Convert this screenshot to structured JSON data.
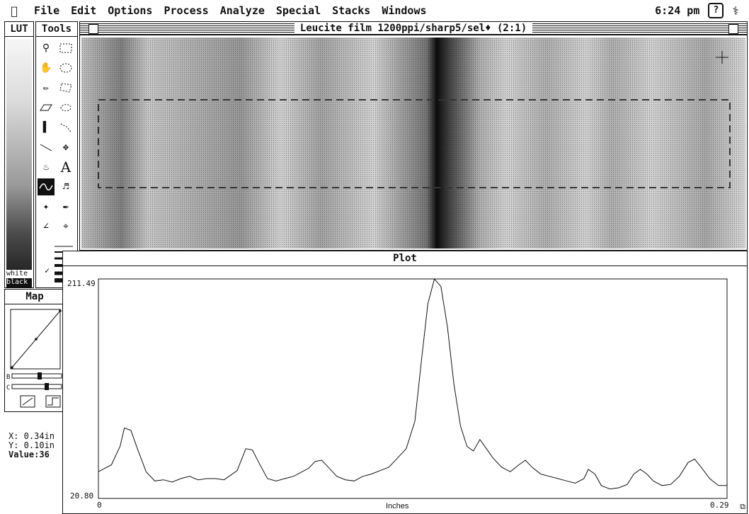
{
  "menubar": {
    "apple": "",
    "items": [
      "File",
      "Edit",
      "Options",
      "Process",
      "Analyze",
      "Special",
      "Stacks",
      "Windows"
    ],
    "clock": "6:24 pm",
    "help": "?"
  },
  "lut": {
    "title": "LUT",
    "white": "white",
    "black": "black"
  },
  "tools": {
    "title": "Tools",
    "selected": "profile-tool"
  },
  "map": {
    "title": "Map",
    "b_label": "B",
    "c_label": "C"
  },
  "info": {
    "x": "X: 0.34in",
    "y": "Y: 0.10in",
    "value": "Value:36"
  },
  "image_window": {
    "title": "Leucite film 1200ppi/sharp5/sel♦ (2:1)"
  },
  "plot_window": {
    "title": "Plot",
    "ymax": "211.49",
    "ymin": "20.80",
    "xmin": "0",
    "xmax": "0.29",
    "xlabel": "Inches"
  },
  "chart_data": {
    "type": "line",
    "xlabel": "Inches",
    "ylabel": "",
    "xlim": [
      0,
      0.29
    ],
    "ylim": [
      20.8,
      211.49
    ],
    "series": [
      {
        "name": "",
        "points": [
          [
            0.0,
            44
          ],
          [
            0.006,
            50
          ],
          [
            0.01,
            66
          ],
          [
            0.012,
            82
          ],
          [
            0.015,
            80
          ],
          [
            0.018,
            64
          ],
          [
            0.022,
            44
          ],
          [
            0.026,
            36
          ],
          [
            0.03,
            37
          ],
          [
            0.034,
            35
          ],
          [
            0.038,
            38
          ],
          [
            0.042,
            40
          ],
          [
            0.046,
            37
          ],
          [
            0.05,
            38
          ],
          [
            0.054,
            38
          ],
          [
            0.058,
            37
          ],
          [
            0.064,
            45
          ],
          [
            0.068,
            64
          ],
          [
            0.071,
            63
          ],
          [
            0.074,
            52
          ],
          [
            0.078,
            38
          ],
          [
            0.082,
            36
          ],
          [
            0.086,
            38
          ],
          [
            0.09,
            40
          ],
          [
            0.094,
            44
          ],
          [
            0.097,
            47
          ],
          [
            0.1,
            53
          ],
          [
            0.103,
            54
          ],
          [
            0.106,
            48
          ],
          [
            0.11,
            40
          ],
          [
            0.114,
            37
          ],
          [
            0.118,
            36
          ],
          [
            0.122,
            40
          ],
          [
            0.126,
            42
          ],
          [
            0.13,
            45
          ],
          [
            0.134,
            48
          ],
          [
            0.138,
            56
          ],
          [
            0.142,
            64
          ],
          [
            0.146,
            88
          ],
          [
            0.149,
            140
          ],
          [
            0.152,
            190
          ],
          [
            0.155,
            211.49
          ],
          [
            0.158,
            205
          ],
          [
            0.161,
            170
          ],
          [
            0.164,
            120
          ],
          [
            0.167,
            84
          ],
          [
            0.17,
            66
          ],
          [
            0.173,
            62
          ],
          [
            0.176,
            72
          ],
          [
            0.179,
            64
          ],
          [
            0.182,
            56
          ],
          [
            0.186,
            48
          ],
          [
            0.19,
            44
          ],
          [
            0.194,
            50
          ],
          [
            0.197,
            54
          ],
          [
            0.2,
            48
          ],
          [
            0.204,
            42
          ],
          [
            0.208,
            40
          ],
          [
            0.212,
            38
          ],
          [
            0.216,
            36
          ],
          [
            0.22,
            34
          ],
          [
            0.224,
            38
          ],
          [
            0.226,
            46
          ],
          [
            0.229,
            42
          ],
          [
            0.232,
            32
          ],
          [
            0.236,
            29
          ],
          [
            0.24,
            30
          ],
          [
            0.244,
            33
          ],
          [
            0.247,
            42
          ],
          [
            0.25,
            46
          ],
          [
            0.253,
            42
          ],
          [
            0.256,
            36
          ],
          [
            0.26,
            32
          ],
          [
            0.264,
            33
          ],
          [
            0.268,
            40
          ],
          [
            0.272,
            52
          ],
          [
            0.275,
            55
          ],
          [
            0.278,
            48
          ],
          [
            0.282,
            38
          ],
          [
            0.286,
            32
          ],
          [
            0.29,
            32
          ]
        ]
      }
    ]
  }
}
